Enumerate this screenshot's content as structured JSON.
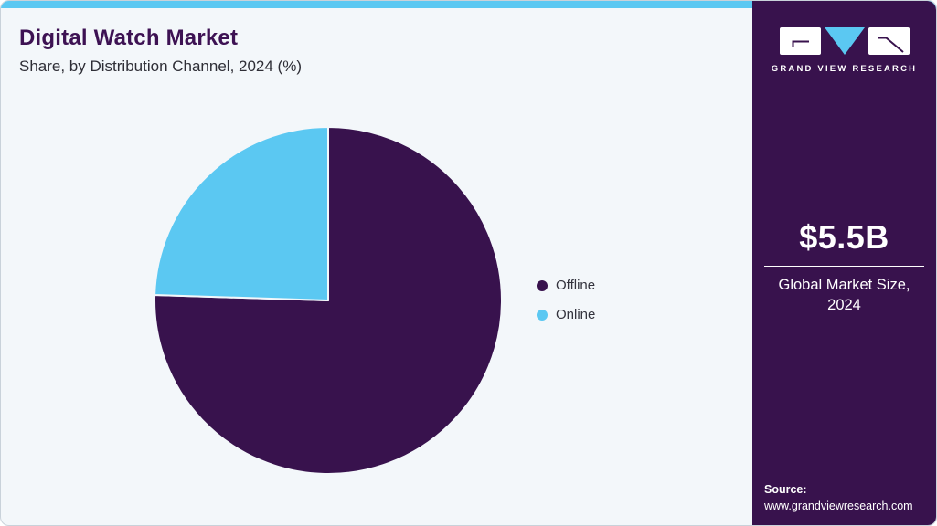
{
  "header": {
    "title": "Digital Watch Market",
    "subtitle": "Share, by Distribution Channel, 2024 (%)"
  },
  "chart_data": {
    "type": "pie",
    "title": "Digital Watch Market Share, by Distribution Channel, 2024 (%)",
    "unit": "%",
    "start_angle_deg": 0,
    "direction": "clockwise",
    "legend_position": "right",
    "labels_shown": false,
    "segments": [
      {
        "label": "Offline",
        "value": 75.5,
        "color": "#38124d"
      },
      {
        "label": "Online",
        "value": 24.5,
        "color": "#5bc8f2"
      }
    ]
  },
  "sidebar": {
    "logo": {
      "text": "GRAND VIEW RESEARCH"
    },
    "stat": {
      "value": "$5.5B",
      "caption": "Global Market Size, 2024"
    },
    "source": {
      "label": "Source:",
      "url": "www.grandviewresearch.com"
    }
  },
  "colors": {
    "accent_blue": "#5bc8f2",
    "brand_purple": "#38124d",
    "card_background": "#f3f7fa",
    "title_purple": "#3d1253",
    "body_text": "#2e2e36"
  }
}
